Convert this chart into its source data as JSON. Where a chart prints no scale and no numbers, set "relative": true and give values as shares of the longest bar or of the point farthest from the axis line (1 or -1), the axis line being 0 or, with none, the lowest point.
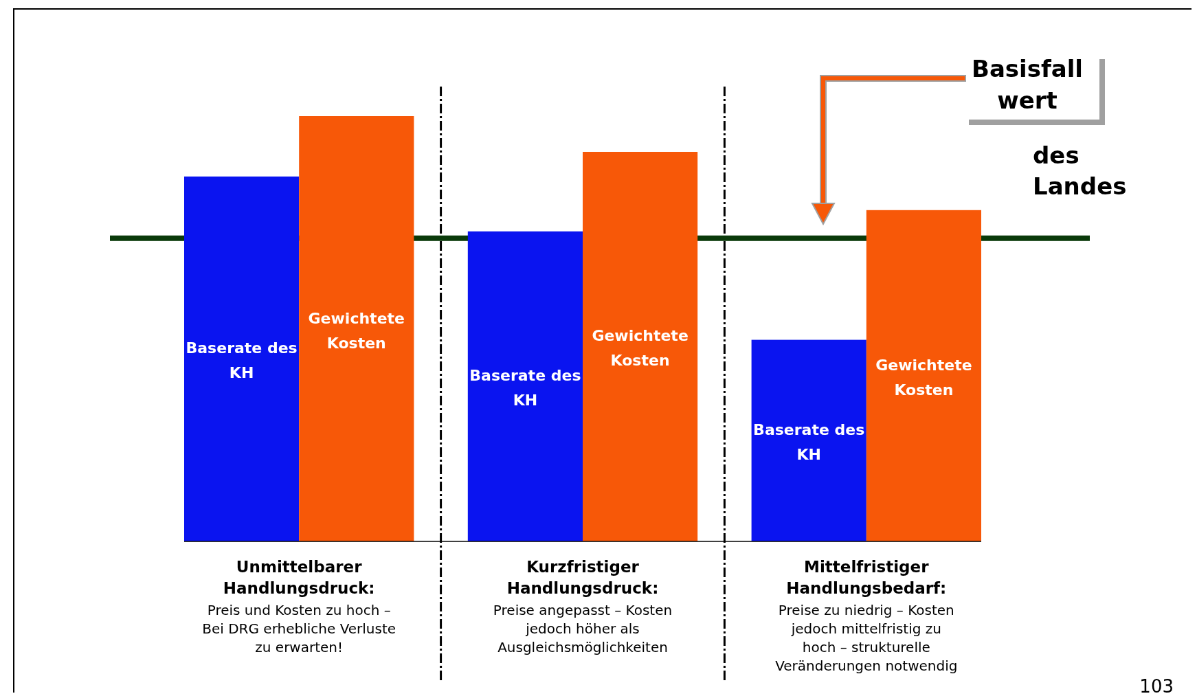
{
  "chart_data": {
    "type": "bar",
    "relative": true,
    "legend": false,
    "categories": [
      "Unmittelbarer Handlungsdruck: Preis und Kosten zu hoch – Bei DRG erhebliche Verluste zu erwarten!",
      "Kurzfristiger Handlungsdruck: Preise angepasst – Kosten jedoch höher als Ausgleichsmöglichkeiten",
      "Mittelfristiger Handlungsbedarf: Preise zu niedrig – Kosten jedoch mittelfristig zu hoch – strukturelle Veränderungen notwendig"
    ],
    "series": [
      {
        "name": "Baserate des KH",
        "color": "#0a14f0",
        "values": [
          0.858,
          0.729,
          0.474
        ]
      },
      {
        "name": "Gewichtete Kosten",
        "color": "#f75808",
        "values": [
          1,
          0.916,
          0.779
        ]
      }
    ],
    "ref_lines": [
      {
        "axis": "y",
        "value": 0.713,
        "label": "Basisfall wert des Landes",
        "color": "#0a3a0a"
      }
    ],
    "annotations": [
      "103"
    ]
  }
}
